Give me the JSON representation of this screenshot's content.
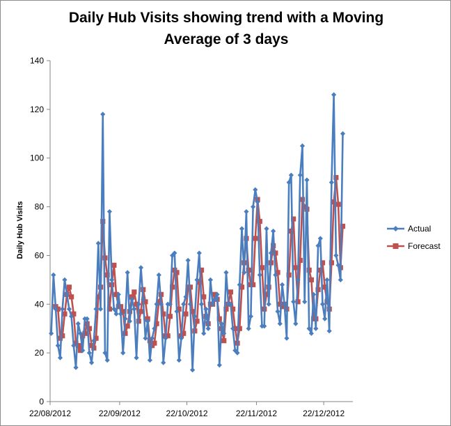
{
  "chart_data": {
    "type": "line",
    "title_line1": "Daily Hub Visits showing trend with a Moving",
    "title_line2": "Average of 3 days",
    "xlabel": "",
    "ylabel": "Daily Hub Visits",
    "ylim": [
      0,
      140
    ],
    "yticks": [
      0,
      20,
      40,
      60,
      80,
      100,
      120,
      140
    ],
    "x_start_date": "2012-08-22",
    "xticks": [
      "22/08/2012",
      "22/09/2012",
      "22/10/2012",
      "22/11/2012",
      "22/12/2012"
    ],
    "grid": false,
    "legend_position": "right",
    "series": [
      {
        "name": "Actual",
        "color": "#4a7ebf",
        "marker": "diamond",
        "values": [
          28,
          52,
          38,
          23,
          18,
          38,
          50,
          44,
          38,
          35,
          23,
          14,
          32,
          28,
          21,
          34,
          34,
          20,
          16,
          25,
          38,
          65,
          38,
          118,
          20,
          17,
          78,
          50,
          38,
          36,
          44,
          36,
          20,
          34,
          53,
          33,
          42,
          38,
          18,
          40,
          55,
          42,
          26,
          33,
          17,
          26,
          30,
          40,
          52,
          40,
          16,
          26,
          40,
          40,
          60,
          61,
          37,
          17,
          26,
          40,
          43,
          58,
          40,
          13,
          35,
          50,
          61,
          40,
          28,
          38,
          30,
          50,
          40,
          42,
          44,
          15,
          32,
          28,
          53,
          40,
          40,
          30,
          21,
          20,
          48,
          71,
          53,
          78,
          30,
          35,
          80,
          87,
          82,
          52,
          31,
          31,
          71,
          40,
          61,
          70,
          52,
          37,
          32,
          48,
          40,
          26,
          90,
          93,
          41,
          32,
          50,
          93,
          105,
          41,
          91,
          30,
          28,
          44,
          30,
          64,
          67,
          40,
          34,
          50,
          29,
          90,
          126,
          60,
          56,
          50,
          110
        ],
        "ma_values": null
      },
      {
        "name": "Forecast",
        "color": "#c0504d",
        "marker": "square",
        "values": [
          null,
          null,
          39,
          38,
          26,
          27,
          36,
          44,
          47,
          43,
          36,
          24,
          23,
          21,
          27,
          28,
          32,
          30,
          23,
          22,
          26,
          43,
          47,
          74,
          59,
          52,
          38,
          48,
          56,
          44,
          39,
          39,
          37,
          28,
          31,
          37,
          43,
          45,
          40,
          33,
          37,
          46,
          41,
          34,
          25,
          23,
          24,
          32,
          41,
          44,
          36,
          27,
          27,
          35,
          47,
          54,
          53,
          38,
          27,
          28,
          36,
          47,
          47,
          37,
          29,
          33,
          49,
          54,
          43,
          35,
          32,
          40,
          40,
          44,
          42,
          34,
          30,
          25,
          38,
          40,
          45,
          38,
          30,
          24,
          30,
          47,
          57,
          67,
          54,
          48,
          48,
          67,
          83,
          74,
          55,
          38,
          44,
          47,
          57,
          64,
          61,
          53,
          40,
          39,
          40,
          38,
          52,
          70,
          75,
          55,
          41,
          58,
          83,
          80,
          79,
          54,
          50,
          34,
          34,
          46,
          54,
          57,
          47,
          41,
          38,
          57,
          82,
          92,
          81,
          55,
          72
        ]
      }
    ]
  }
}
